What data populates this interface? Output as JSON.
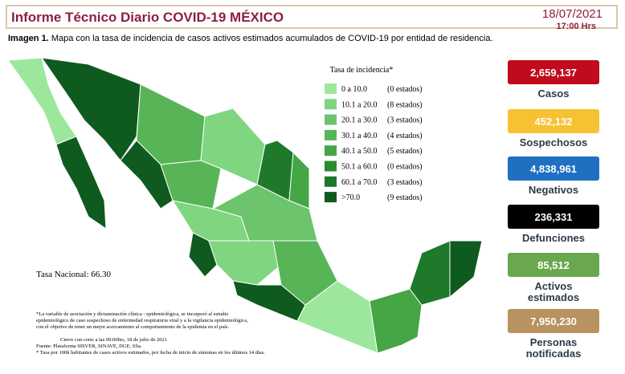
{
  "header": {
    "title": "Informe Técnico Diario COVID-19 MÉXICO",
    "date": "18/07/2021",
    "time": "17:00 Hrs"
  },
  "caption": {
    "label": "Imagen 1.",
    "text": "Mapa con la tasa de incidencia de casos activos estimados acumulados de COVID-19 por entidad de residencia."
  },
  "legend": {
    "title": "Tasa de incidencia*",
    "rows": [
      {
        "range": "0  a  10.0",
        "count": "(0 estados)",
        "color": "#9ce79c"
      },
      {
        "range": "10.1 a  20.0",
        "count": "(8 estados)",
        "color": "#80d580"
      },
      {
        "range": "20.1  a  30.0",
        "count": "(3 estados)",
        "color": "#6cc46c"
      },
      {
        "range": "30.1  a  40.0",
        "count": "(4 estados)",
        "color": "#57b557"
      },
      {
        "range": "40.1  a  50.0",
        "count": "(5 estados)",
        "color": "#44a644"
      },
      {
        "range": "50.1  a  60.0",
        "count": "(0 estados)",
        "color": "#2c8b2c"
      },
      {
        "range": "60.1  a  70.0",
        "count": "(3 estados)",
        "color": "#1e7a2a"
      },
      {
        "range": ">70.0",
        "count": "(9 estados)",
        "color": "#0f5a1e"
      }
    ]
  },
  "national_rate": "Tasa Nacional: 66.30",
  "notes": [
    "*La variable de asociación y dictaminación clínica - epidemiológica, se incorporó al estudio",
    "epidemiológico de caso sospechoso de enfermedad respiratoria viral y a la vigilancia epidemiológica,",
    "con el objetivo de tener un mejor acercamiento al comportamiento de la epidemia en el país.",
    "Cierre con corte a las 09:00hrs, 18 de julio de 2021",
    "Fuente: Plataforma SISVER, SINAVE, DGE, SSa.",
    "* Tasa por 100k habitantes de casos activos estimados, por fecha de inicio de síntomas en los últimos 14 días."
  ],
  "stats": [
    {
      "value": "2,659,137",
      "label": [
        "Casos"
      ],
      "color": "#c10a1c"
    },
    {
      "value": "452,132",
      "label": [
        "Sospechosos"
      ],
      "color": "#f6c233"
    },
    {
      "value": "4,838,961",
      "label": [
        "Negativos"
      ],
      "color": "#1f70c1"
    },
    {
      "value": "236,331",
      "label": [
        "Defunciones"
      ],
      "color": "#000000"
    },
    {
      "value": "85,512",
      "label": [
        "Activos",
        "estimados"
      ],
      "color": "#6aa84f"
    },
    {
      "value": "7,950,230",
      "label": [
        "Personas",
        "notificadas"
      ],
      "color": "#b8925f"
    }
  ]
}
